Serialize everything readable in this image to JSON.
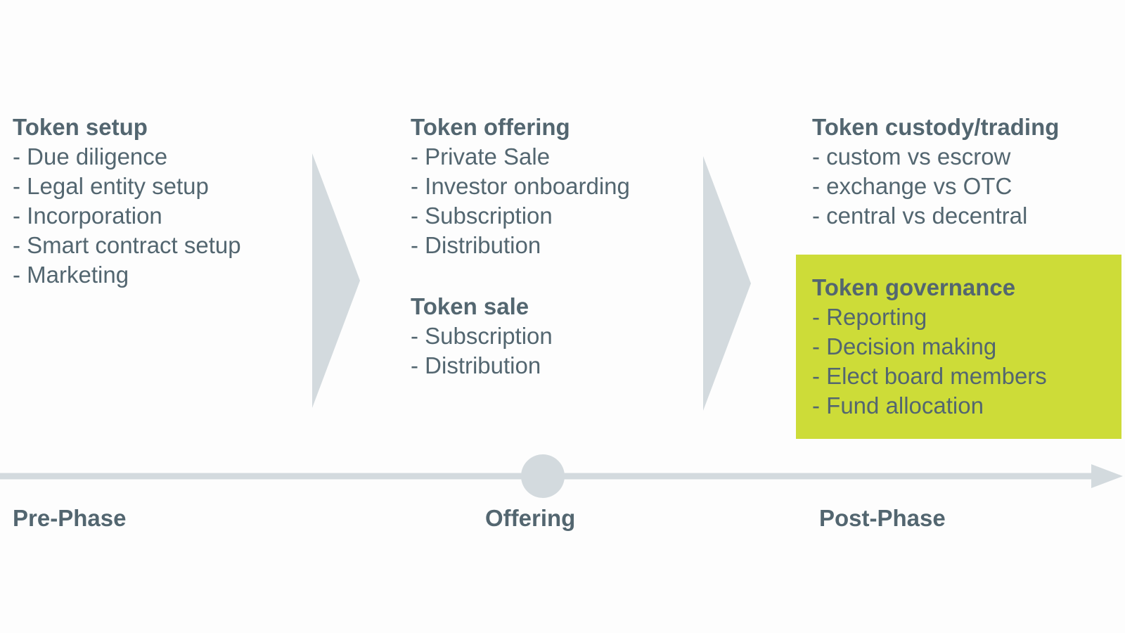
{
  "pre_phase": {
    "setup": {
      "title": "Token setup",
      "items": [
        "- Due diligence",
        "- Legal entity setup",
        "- Incorporation",
        "- Smart contract setup",
        "- Marketing"
      ]
    }
  },
  "offering": {
    "token_offering": {
      "title": "Token offering",
      "items": [
        "- Private Sale",
        "- Investor onboarding",
        "- Subscription",
        "- Distribution"
      ]
    },
    "token_sale": {
      "title": "Token sale",
      "items": [
        "- Subscription",
        "- Distribution"
      ]
    }
  },
  "post_phase": {
    "custody": {
      "title": "Token custody/trading",
      "items": [
        "- custom vs escrow",
        "- exchange vs OTC",
        "- central vs decentral"
      ]
    },
    "governance": {
      "title": "Token governance",
      "items": [
        "- Reporting",
        "- Decision making",
        "- Elect board members",
        "- Fund allocation"
      ],
      "highlight_color": "#cddc38"
    }
  },
  "timeline": {
    "labels": [
      "Pre-Phase",
      "Offering",
      "Post-Phase"
    ],
    "line_color": "#d3dade"
  },
  "colors": {
    "text": "#536670",
    "chevron": "#d3dade",
    "background": "#fdfdfd"
  }
}
